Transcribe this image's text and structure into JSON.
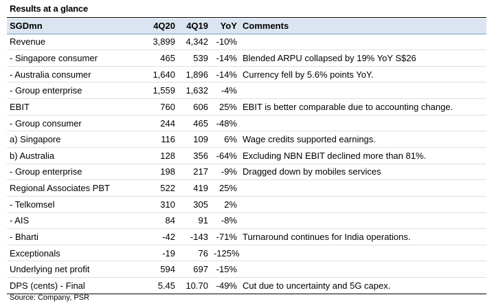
{
  "title": "Results at a glance",
  "headers": [
    "SGDmn",
    "4Q20",
    "4Q19",
    "YoY",
    "Comments"
  ],
  "rows": [
    [
      "Revenue",
      "3,899",
      "4,342",
      "-10%",
      ""
    ],
    [
      " - Singapore consumer",
      "465",
      "539",
      "-14%",
      "Blended ARPU collapsed by 19% YoY S$26"
    ],
    [
      " - Australia consumer",
      "1,640",
      "1,896",
      "-14%",
      "Currency fell by 5.6% points YoY."
    ],
    [
      " - Group enterprise",
      "1,559",
      "1,632",
      "-4%",
      ""
    ],
    [
      "EBIT",
      "760",
      "606",
      "25%",
      "EBIT is better comparable due to accounting change."
    ],
    [
      " - Group consumer",
      "244",
      "465",
      "-48%",
      ""
    ],
    [
      "a) Singapore",
      "116",
      "109",
      "6%",
      "Wage credits supported earnings."
    ],
    [
      "b) Australia",
      "128",
      "356",
      "-64%",
      "Excluding NBN EBIT declined more than 81%."
    ],
    [
      " - Group enterprise",
      "198",
      "217",
      "-9%",
      "Dragged down by mobiles services"
    ],
    [
      "Regional Associates PBT",
      "522",
      "419",
      "25%",
      ""
    ],
    [
      " - Telkomsel",
      "310",
      "305",
      "2%",
      ""
    ],
    [
      " - AIS",
      "84",
      "91",
      "-8%",
      ""
    ],
    [
      " - Bharti",
      "-42",
      "-143",
      "-71%",
      "Turnaround continues for India operations."
    ],
    [
      "Exceptionals",
      "-19",
      "76",
      "-125%",
      ""
    ],
    [
      "Underlying net profit",
      "594",
      "697",
      "-15%",
      ""
    ],
    [
      "DPS (cents)  - Final",
      "5.45",
      "10.70",
      "-49%",
      "Cut due to uncertainty and 5G capex."
    ]
  ],
  "source": "Source: Company, PSR",
  "colors": {
    "header_bg": "#dbe5f1",
    "rule": "#000000"
  }
}
